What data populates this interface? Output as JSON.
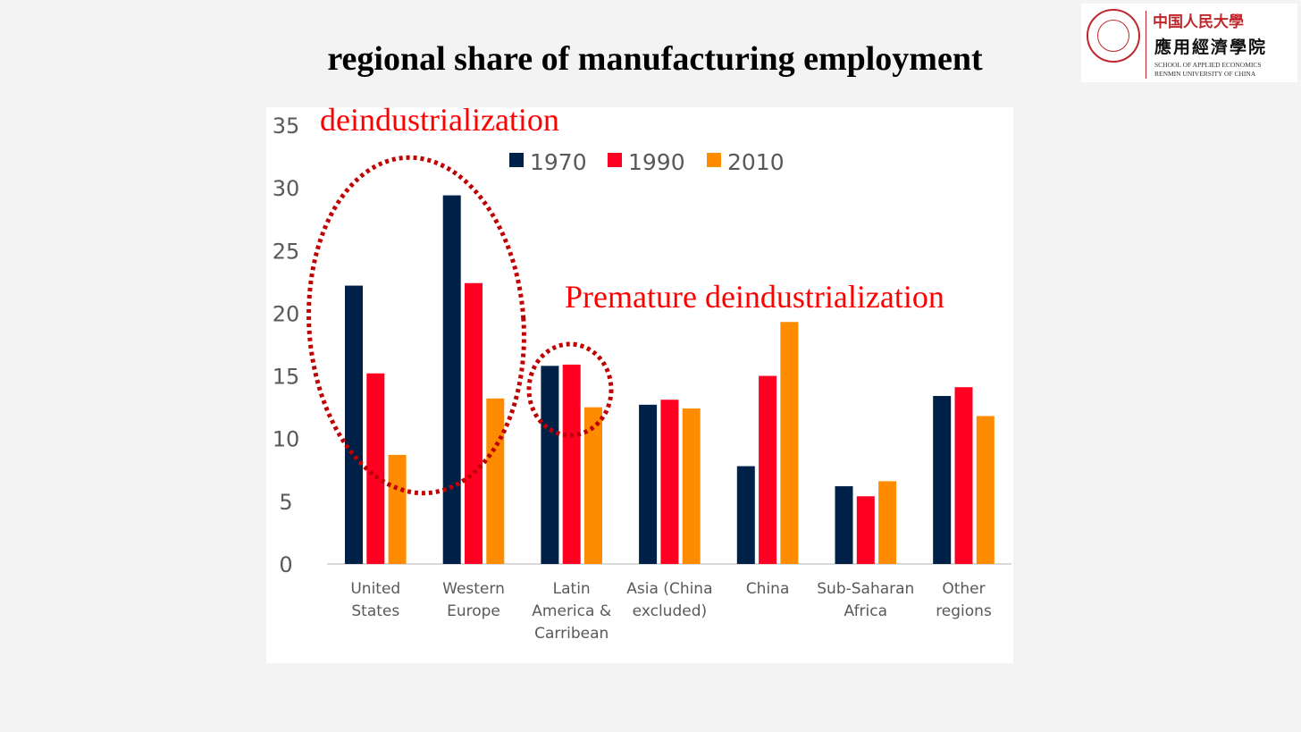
{
  "slide": {
    "title": "regional share of manufacturing employment"
  },
  "logo": {
    "cn_line1": "中国人民大學",
    "cn_line2": "應用經濟學院",
    "en_line1": "SCHOOL OF APPLIED ECONOMICS",
    "en_line2": "RENMIN UNIVERSITY OF CHINA"
  },
  "annotations": {
    "deindustrialization": "deindustrialization",
    "premature": "Premature deindustrialization"
  },
  "chart_data": {
    "type": "bar",
    "categories": [
      [
        "United",
        "States"
      ],
      [
        "Western",
        "Europe"
      ],
      [
        "Latin",
        "America &",
        "Carribean"
      ],
      [
        "Asia (China",
        "excluded)"
      ],
      [
        "China"
      ],
      [
        "Sub-Saharan",
        "Africa"
      ],
      [
        "Other",
        "regions"
      ]
    ],
    "series": [
      {
        "name": "1970",
        "color": "#002147",
        "values": [
          22.2,
          29.4,
          15.8,
          12.7,
          7.8,
          6.2,
          13.4
        ]
      },
      {
        "name": "1990",
        "color": "#ff0022",
        "values": [
          15.2,
          22.4,
          15.9,
          13.1,
          15.0,
          5.4,
          14.1
        ]
      },
      {
        "name": "2010",
        "color": "#ff8c00",
        "values": [
          8.7,
          13.2,
          12.5,
          12.4,
          19.3,
          6.6,
          11.8
        ]
      }
    ],
    "ylim": [
      0,
      35
    ],
    "yticks": [
      0,
      5,
      10,
      15,
      20,
      25,
      30,
      35
    ],
    "legend_position": "top-center",
    "grid": false
  },
  "overlay_colors": {
    "circle": "#c00000"
  }
}
